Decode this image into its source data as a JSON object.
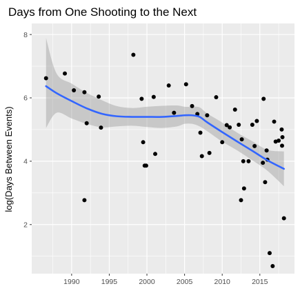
{
  "chart_data": {
    "type": "scatter",
    "title": "Days from One Shooting to the Next",
    "xlabel": "",
    "ylabel": "log(Days Between Events)",
    "xlim": [
      1984.7,
      2019.6
    ],
    "ylim": [
      0.45,
      8.35
    ],
    "x_ticks": [
      1990,
      1995,
      2000,
      2005,
      2010,
      2015
    ],
    "x_tick_labels": [
      "1990",
      "1995",
      "2000",
      "2005",
      "2010",
      "2015"
    ],
    "y_ticks": [
      2,
      4,
      6,
      8
    ],
    "y_tick_labels": [
      "2",
      "4",
      "6",
      "8"
    ],
    "grid": true,
    "legend": "none",
    "colors": {
      "panel": "#ebebeb",
      "grid_major": "#ffffff",
      "points": "#000000",
      "smooth_line": "#3366ff",
      "confidence_band": "#999999"
    },
    "series": [
      {
        "kind": "points",
        "x": [
          1986.6,
          1989.1,
          1990.3,
          1991.7,
          1991.7,
          1992.0,
          1993.6,
          1993.9,
          1998.2,
          1999.3,
          1999.5,
          1999.7,
          1999.9,
          2000.9,
          2001.1,
          2002.9,
          2003.6,
          2005.2,
          2006.0,
          2006.7,
          2007.1,
          2007.3,
          2008.0,
          2008.3,
          2009.2,
          2010.0,
          2010.6,
          2011.0,
          2011.7,
          2012.2,
          2012.5,
          2012.6,
          2012.8,
          2012.9,
          2013.5,
          2014.0,
          2014.3,
          2014.6,
          2015.4,
          2015.5,
          2015.7,
          2015.9,
          2016.0,
          2016.3,
          2016.7,
          2016.9,
          2017.1,
          2017.5,
          2017.9,
          2017.95,
          2018.0,
          2018.2
        ],
        "y": [
          6.62,
          6.77,
          6.24,
          6.18,
          2.77,
          5.2,
          6.04,
          5.06,
          7.36,
          5.97,
          4.6,
          3.86,
          3.86,
          6.03,
          4.23,
          6.39,
          5.53,
          6.43,
          5.74,
          5.49,
          4.9,
          4.16,
          5.45,
          4.26,
          6.02,
          4.6,
          5.14,
          5.07,
          5.63,
          5.15,
          2.77,
          4.69,
          4.0,
          3.14,
          4.0,
          5.15,
          4.48,
          5.27,
          3.95,
          5.97,
          3.34,
          4.34,
          4.05,
          1.1,
          0.69,
          5.25,
          4.62,
          4.65,
          5.0,
          4.49,
          4.76,
          2.2
        ]
      },
      {
        "kind": "loess",
        "x": [
          1986.6,
          1988.0,
          1990.0,
          1992.0,
          1994.0,
          1996.0,
          1998.0,
          2000.0,
          2002.0,
          2004.0,
          2005.0,
          2006.0,
          2007.0,
          2008.0,
          2010.0,
          2012.0,
          2014.0,
          2016.0,
          2018.2
        ],
        "y": [
          6.37,
          6.15,
          5.9,
          5.67,
          5.5,
          5.42,
          5.4,
          5.4,
          5.4,
          5.43,
          5.45,
          5.45,
          5.4,
          5.23,
          4.92,
          4.62,
          4.33,
          4.03,
          3.76
        ],
        "ymin": [
          5.05,
          5.53,
          5.35,
          5.18,
          5.07,
          5.1,
          5.12,
          5.08,
          5.05,
          5.1,
          5.18,
          5.18,
          5.1,
          4.95,
          4.62,
          4.34,
          4.03,
          3.7,
          3.21
        ],
        "ymax": [
          7.89,
          6.77,
          6.45,
          6.16,
          5.93,
          5.74,
          5.68,
          5.72,
          5.75,
          5.76,
          5.72,
          5.72,
          5.7,
          5.51,
          5.22,
          4.9,
          4.63,
          4.36,
          4.31
        ]
      }
    ]
  }
}
